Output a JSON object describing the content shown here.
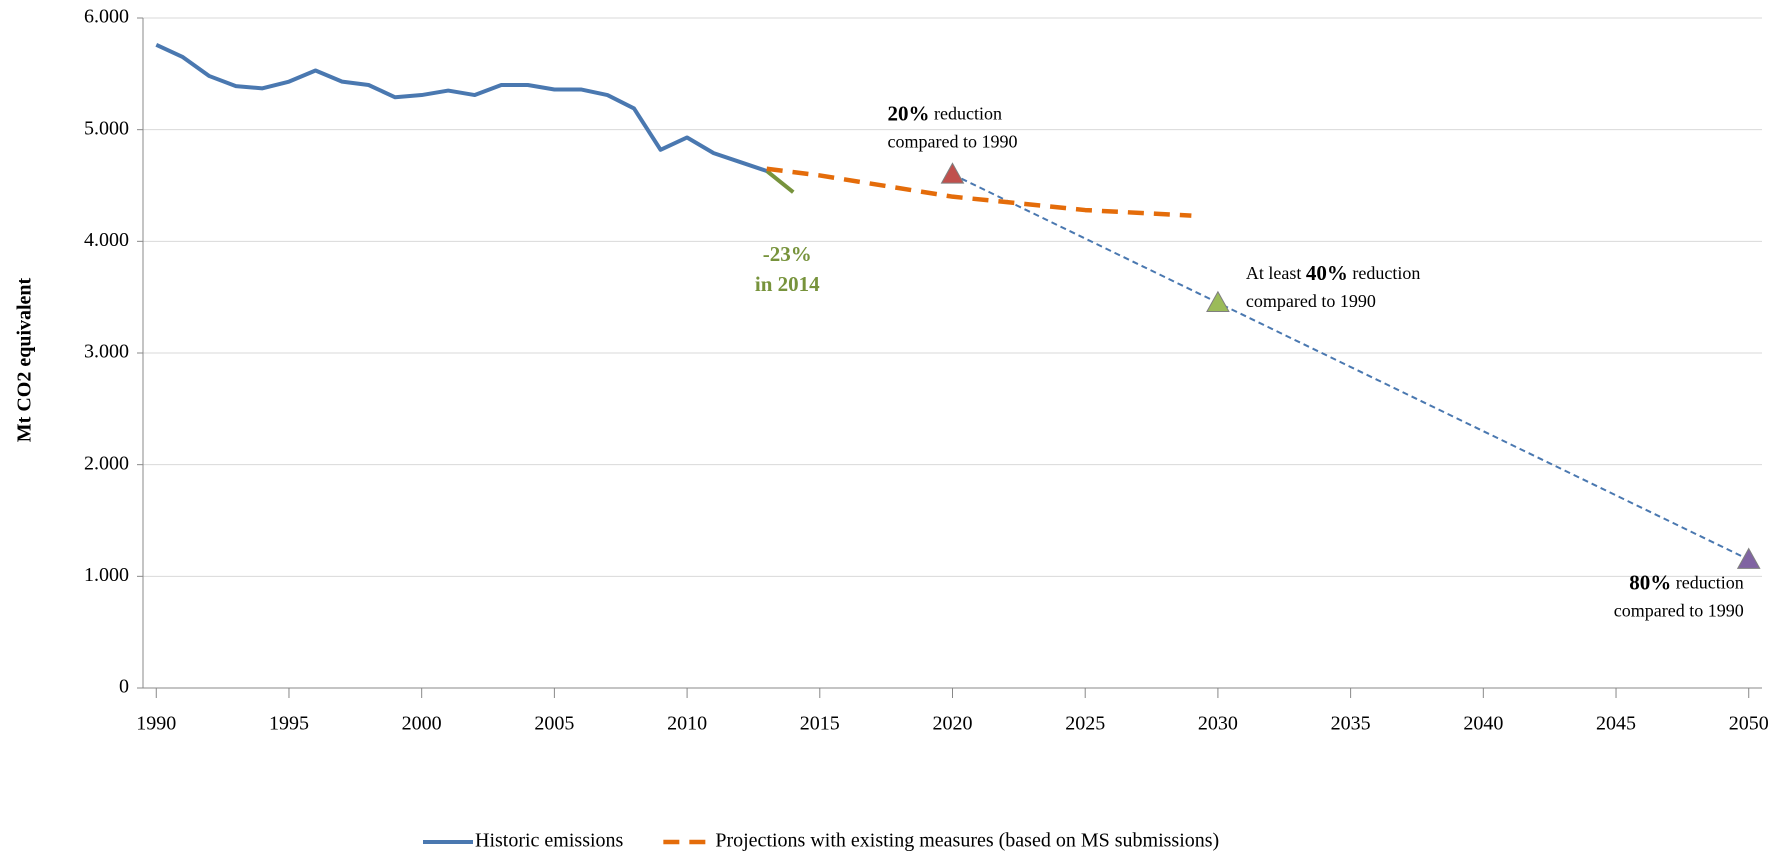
{
  "chart_data": {
    "type": "line",
    "ylabel": "Mt CO2 equivalent",
    "xlim": [
      1989.5,
      2050.5
    ],
    "xticks": [
      1990,
      1995,
      2000,
      2005,
      2010,
      2015,
      2020,
      2025,
      2030,
      2035,
      2040,
      2045,
      2050
    ],
    "ylim": [
      0,
      6000
    ],
    "yticks": [
      0,
      {
        "value": 1000,
        "label": "1.000"
      },
      {
        "value": 2000,
        "label": "2.000"
      },
      {
        "value": 3000,
        "label": "3.000"
      },
      {
        "value": 4000,
        "label": "4.000"
      },
      {
        "value": 5000,
        "label": "5.000"
      },
      {
        "value": 6000,
        "label": "6.000"
      }
    ],
    "grid": true,
    "legend": "bottom",
    "series": [
      {
        "name": "Historic emissions",
        "color": "#4a78b0",
        "style": "solid",
        "x": [
          1990,
          1991,
          1992,
          1993,
          1994,
          1995,
          1996,
          1997,
          1998,
          1999,
          2000,
          2001,
          2002,
          2003,
          2004,
          2005,
          2006,
          2007,
          2008,
          2009,
          2010,
          2011,
          2012,
          2013
        ],
        "values": [
          5760,
          5650,
          5480,
          5390,
          5370,
          5430,
          5530,
          5430,
          5400,
          5290,
          5310,
          5350,
          5310,
          5400,
          5400,
          5360,
          5360,
          5310,
          5190,
          4820,
          4930,
          4790,
          4710,
          4630
        ]
      },
      {
        "name": "Projections with existing measures (based on MS submissions)",
        "color": "#e46c0a",
        "style": "dashed",
        "x": [
          2013,
          2015,
          2020,
          2025,
          2029
        ],
        "values": [
          4650,
          4590,
          4400,
          4280,
          4230
        ]
      }
    ],
    "lines": [
      {
        "color": "#77933c",
        "style": "solid",
        "x": [
          2013,
          2014
        ],
        "values": [
          4630,
          4440
        ]
      },
      {
        "color": "#4a78b0",
        "style": "dotted",
        "x": [
          2020,
          2030,
          2050
        ],
        "values": [
          4600,
          3450,
          1150
        ]
      }
    ],
    "markers": [
      {
        "x": 2020,
        "value": 4600,
        "color": "#c0504d"
      },
      {
        "x": 2030,
        "value": 3450,
        "color": "#9bbb59"
      },
      {
        "x": 2050,
        "value": 1150,
        "color": "#8064a2"
      }
    ],
    "annotations": [
      {
        "bold": "20%",
        "text": " reduction",
        "line2": "compared to 1990"
      },
      {
        "lead": "At least ",
        "bold": "40%",
        "text": " reduction",
        "line2": "compared to 1990"
      },
      {
        "bold": "80%",
        "text": " reduction",
        "line2": "compared to 1990"
      },
      {
        "line1": "-23%",
        "line2": "in 2014",
        "color": "#77933c"
      }
    ]
  }
}
